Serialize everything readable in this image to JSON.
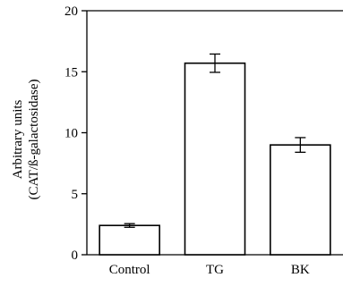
{
  "chart_data": {
    "type": "bar",
    "categories": [
      "Control",
      "TG",
      "BK"
    ],
    "values": [
      2.4,
      15.7,
      9.0
    ],
    "error": [
      0.15,
      0.75,
      0.6
    ],
    "ylabel_line1": "Arbitrary units",
    "ylabel_line2": "(CAT/ß-galactosidase)",
    "ylim": [
      0,
      20
    ],
    "yticks": [
      0,
      5,
      10,
      15,
      20
    ],
    "grid": false,
    "bar_fill": "#ffffff",
    "stroke": "#000000"
  }
}
